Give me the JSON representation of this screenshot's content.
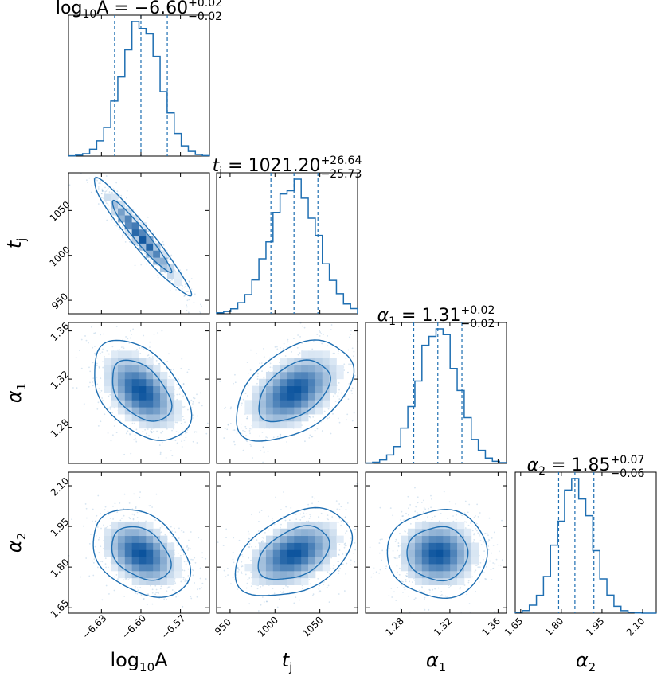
{
  "chart_data": {
    "type": "corner",
    "parameters": [
      {
        "key": "log10A",
        "label_base": "log",
        "label_sub": "10",
        "label_tail": "A",
        "title_value": "−6.60",
        "title_plus": "+0.02",
        "title_minus": "−0.02",
        "median": -6.6,
        "q16": -6.62,
        "q84": -6.58,
        "sigma": 0.0148,
        "range": [
          -6.655,
          -6.548
        ],
        "ticks": [
          -6.63,
          -6.6,
          -6.57
        ],
        "tick_labels": [
          "−6.63",
          "−6.60",
          "−6.57"
        ]
      },
      {
        "key": "t_j",
        "label_base": "t",
        "label_sub": "j",
        "label_tail": "",
        "title_value": "1021.20",
        "title_plus": "+26.64",
        "title_minus": "−25.73",
        "median": 1021.2,
        "q16": 995.47,
        "q84": 1047.84,
        "sigma": 26.2,
        "range": [
          935,
          1092
        ],
        "ticks": [
          950,
          1000,
          1050
        ],
        "tick_labels": [
          "950",
          "1000",
          "1050"
        ]
      },
      {
        "key": "alpha_1",
        "label_base": "α",
        "label_sub": "1",
        "label_tail": "",
        "title_value": "1.31",
        "title_plus": "+0.02",
        "title_minus": "−0.02",
        "median": 1.31,
        "q16": 1.29,
        "q84": 1.33,
        "sigma": 0.0167,
        "range": [
          1.25,
          1.367
        ],
        "ticks": [
          1.28,
          1.32,
          1.36
        ],
        "tick_labels": [
          "1.28",
          "1.32",
          "1.36"
        ]
      },
      {
        "key": "alpha_2",
        "label_base": "α",
        "label_sub": "2",
        "label_tail": "",
        "title_value": "1.85",
        "title_plus": "+0.07",
        "title_minus": "−0.06",
        "median": 1.85,
        "q16": 1.79,
        "q84": 1.92,
        "sigma": 0.065,
        "range": [
          1.63,
          2.15
        ],
        "ticks": [
          1.65,
          1.8,
          1.95,
          2.1
        ],
        "tick_labels": [
          "1.65",
          "1.80",
          "1.95",
          "2.10"
        ]
      }
    ],
    "correlations": {
      "t_j|log10A": -0.96,
      "alpha_1|log10A": -0.45,
      "alpha_1|t_j": 0.45,
      "alpha_2|log10A": -0.35,
      "alpha_2|t_j": 0.4,
      "alpha_2|alpha_1": 0.0
    },
    "histogram_bins": 20,
    "contour_levels_sigma": [
      1,
      2
    ],
    "quantile_lines": true,
    "grid": false,
    "colors": {
      "line": "#1f6fb2",
      "density_dark": "#08519c",
      "density_light": "#eef5fc",
      "frame": "#000000"
    }
  }
}
